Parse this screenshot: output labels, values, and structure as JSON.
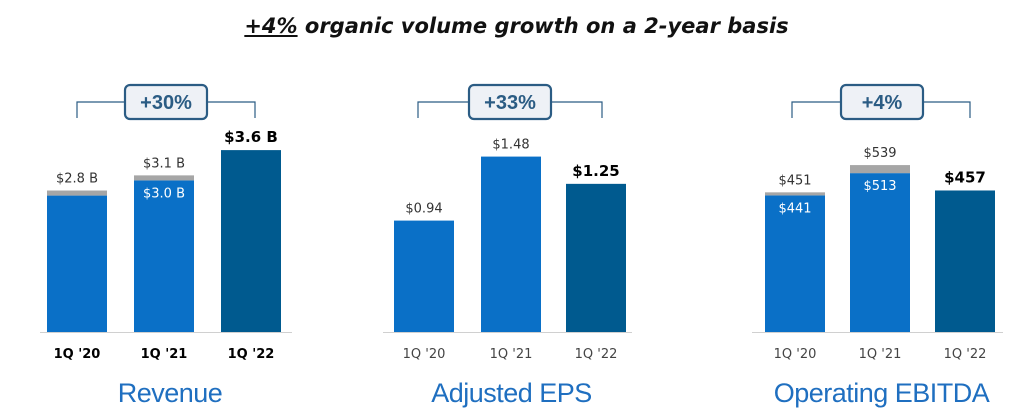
{
  "headline": {
    "highlight": "+4%",
    "rest": " organic volume growth on a 2-year basis"
  },
  "colors": {
    "blue": "#0a70c7",
    "dark": "#005a8f",
    "gray": "#a6a6a6",
    "bracket": "#2b5c84",
    "badge_fill": "#eef1f6",
    "caption": "#1f6fc0"
  },
  "chart_data": [
    {
      "type": "bar",
      "title": "Revenue",
      "growth_badge": "+30%",
      "categories": [
        "1Q '20",
        "1Q '21",
        "1Q '22"
      ],
      "ylim": [
        0,
        3.8
      ],
      "series": [
        {
          "values": [
            2.7,
            3.0,
            3.6
          ],
          "colors": [
            "#0a70c7",
            "#0a70c7",
            "#005a8f"
          ]
        },
        {
          "values": [
            0.1,
            0.1,
            0
          ],
          "color": "#a6a6a6"
        }
      ],
      "top_labels": [
        "$2.8 B",
        "$3.1 B",
        "$3.6 B"
      ],
      "top_label_bold": [
        false,
        false,
        true
      ],
      "inside_labels": [
        "",
        "$3.0 B",
        ""
      ],
      "category_label_bold": true
    },
    {
      "type": "bar",
      "title": "Adjusted EPS",
      "growth_badge": "+33%",
      "categories": [
        "1Q '20",
        "1Q '21",
        "1Q '22"
      ],
      "ylim": [
        0,
        1.62
      ],
      "series": [
        {
          "values": [
            0.94,
            1.48,
            1.25
          ],
          "colors": [
            "#0a70c7",
            "#0a70c7",
            "#005a8f"
          ]
        }
      ],
      "top_labels": [
        "$0.94",
        "$1.48",
        "$1.25"
      ],
      "top_label_bold": [
        false,
        false,
        true
      ],
      "inside_labels": [
        "",
        "",
        ""
      ],
      "category_label_bold": false
    },
    {
      "type": "bar",
      "title": "Operating EBITDA",
      "growth_badge": "+4%",
      "categories": [
        "1Q '20",
        "1Q '21",
        "1Q '22"
      ],
      "ylim": [
        0,
        620
      ],
      "series": [
        {
          "values": [
            441,
            513,
            457
          ],
          "colors": [
            "#0a70c7",
            "#0a70c7",
            "#005a8f"
          ]
        },
        {
          "values": [
            10,
            26,
            0
          ],
          "color": "#a6a6a6"
        }
      ],
      "top_labels": [
        "$451",
        "$539",
        "$457"
      ],
      "top_label_bold": [
        false,
        false,
        true
      ],
      "inside_labels": [
        "$441",
        "$513",
        ""
      ],
      "category_label_bold": false
    }
  ]
}
